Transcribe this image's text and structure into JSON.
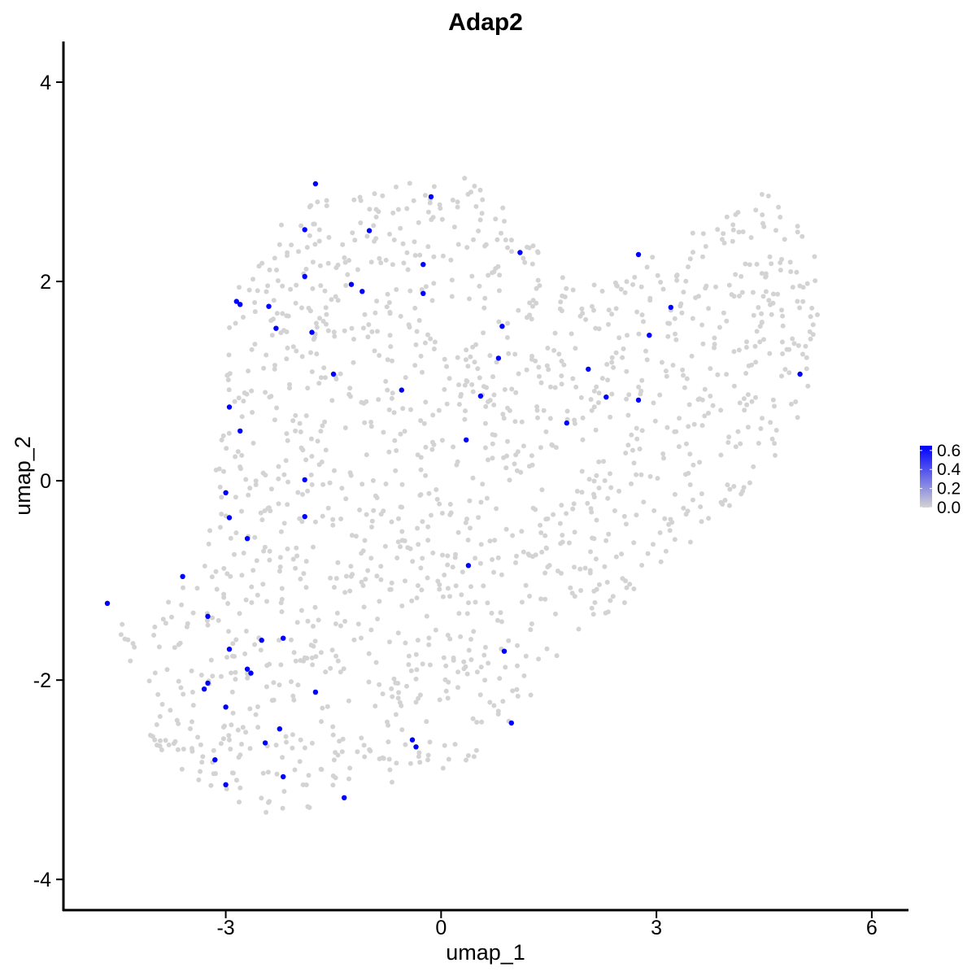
{
  "chart_data": {
    "type": "scatter",
    "title": "Adap2",
    "xlabel": "umap_1",
    "ylabel": "umap_2",
    "xlim": [
      -5.25,
      6.5
    ],
    "ylim": [
      -4.3,
      4.4
    ],
    "x_ticks": [
      -3,
      0,
      3,
      6
    ],
    "x_tick_labels": [
      "-3",
      "0",
      "3",
      "6"
    ],
    "y_ticks": [
      -4,
      -2,
      0,
      2,
      4
    ],
    "y_tick_labels": [
      "-4",
      "-2",
      "0",
      "2",
      "4"
    ],
    "grid": false,
    "legend": {
      "position": "right",
      "type": "colorbar",
      "labels": [
        "0.6",
        "0.4",
        "0.2",
        "0.0"
      ],
      "values": [
        0.6,
        0.4,
        0.2,
        0.0
      ],
      "range": [
        0.0,
        0.65
      ],
      "low_color": "#d3d3d3",
      "high_color": "#0000ff"
    },
    "colors": {
      "not_expressed": "#d3d3d3",
      "expressed": "#0000ff"
    },
    "background_cells": {
      "count": 1500,
      "color": "#d3d3d3",
      "value": 0.0,
      "note_region_outline": [
        [
          -4.6,
          -1.2
        ],
        [
          -4.0,
          -1.4
        ],
        [
          -3.2,
          -0.2
        ],
        [
          -3.1,
          0.8
        ],
        [
          -2.9,
          1.9
        ],
        [
          -2.2,
          2.6
        ],
        [
          -1.5,
          2.9
        ],
        [
          -0.5,
          3.05
        ],
        [
          0.3,
          3.05
        ],
        [
          0.9,
          2.8
        ],
        [
          1.3,
          2.4
        ],
        [
          1.9,
          2.0
        ],
        [
          2.6,
          2.0
        ],
        [
          3.3,
          2.5
        ],
        [
          4.0,
          2.7
        ],
        [
          4.5,
          3.0
        ],
        [
          5.0,
          2.6
        ],
        [
          5.35,
          2.2
        ],
        [
          5.3,
          1.3
        ],
        [
          5.0,
          0.6
        ],
        [
          4.4,
          0.0
        ],
        [
          3.5,
          -0.6
        ],
        [
          2.6,
          -1.2
        ],
        [
          1.7,
          -1.7
        ],
        [
          1.0,
          -2.4
        ],
        [
          0.3,
          -2.9
        ],
        [
          -0.5,
          -3.0
        ],
        [
          -1.5,
          -3.2
        ],
        [
          -2.0,
          -3.45
        ],
        [
          -2.6,
          -3.3
        ],
        [
          -3.4,
          -3.1
        ],
        [
          -4.0,
          -2.7
        ],
        [
          -4.3,
          -2.0
        ]
      ]
    },
    "series": [
      {
        "name": "expressed",
        "color": "#0000ff",
        "value": 0.65,
        "points": [
          [
            -1.75,
            2.98
          ],
          [
            -0.14,
            2.85
          ],
          [
            -1.9,
            2.52
          ],
          [
            -1.0,
            2.51
          ],
          [
            1.1,
            2.29
          ],
          [
            -0.25,
            2.17
          ],
          [
            2.75,
            2.27
          ],
          [
            -1.9,
            2.05
          ],
          [
            -1.25,
            1.97
          ],
          [
            -1.1,
            1.9
          ],
          [
            -0.25,
            1.88
          ],
          [
            -2.85,
            1.8
          ],
          [
            -2.8,
            1.77
          ],
          [
            -2.4,
            1.75
          ],
          [
            3.2,
            1.74
          ],
          [
            -2.3,
            1.53
          ],
          [
            -1.8,
            1.49
          ],
          [
            0.85,
            1.55
          ],
          [
            2.9,
            1.46
          ],
          [
            0.8,
            1.23
          ],
          [
            2.05,
            1.12
          ],
          [
            -1.5,
            1.07
          ],
          [
            5.0,
            1.07
          ],
          [
            -0.55,
            0.91
          ],
          [
            0.55,
            0.85
          ],
          [
            2.3,
            0.84
          ],
          [
            2.75,
            0.81
          ],
          [
            -2.95,
            0.74
          ],
          [
            1.75,
            0.58
          ],
          [
            -2.8,
            0.5
          ],
          [
            0.35,
            0.41
          ],
          [
            -1.9,
            0.01
          ],
          [
            -3.0,
            -0.12
          ],
          [
            -2.95,
            -0.37
          ],
          [
            -1.9,
            -0.36
          ],
          [
            -2.7,
            -0.58
          ],
          [
            0.38,
            -0.85
          ],
          [
            -3.6,
            -0.96
          ],
          [
            -4.65,
            -1.23
          ],
          [
            -3.25,
            -1.36
          ],
          [
            -2.5,
            -1.6
          ],
          [
            -2.2,
            -1.58
          ],
          [
            -2.95,
            -1.69
          ],
          [
            0.88,
            -1.71
          ],
          [
            -2.7,
            -1.89
          ],
          [
            -2.65,
            -1.93
          ],
          [
            -3.25,
            -2.03
          ],
          [
            -3.3,
            -2.09
          ],
          [
            -1.75,
            -2.12
          ],
          [
            -3.0,
            -2.27
          ],
          [
            0.98,
            -2.43
          ],
          [
            -2.25,
            -2.49
          ],
          [
            -0.4,
            -2.6
          ],
          [
            -2.45,
            -2.63
          ],
          [
            -0.35,
            -2.67
          ],
          [
            -3.15,
            -2.8
          ],
          [
            -2.2,
            -2.97
          ],
          [
            -3.0,
            -3.05
          ],
          [
            -1.35,
            -3.18
          ]
        ]
      }
    ]
  }
}
